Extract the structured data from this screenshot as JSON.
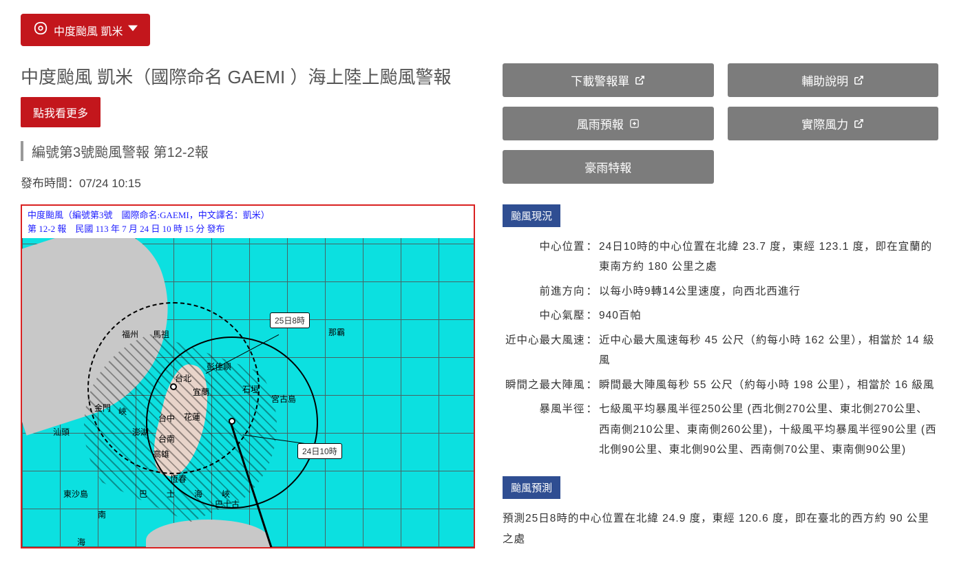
{
  "selector": {
    "label": "中度颱風 凱米"
  },
  "header": {
    "title": "中度颱風 凱米（國際命名 GAEMI ）海上陸上颱風警報",
    "more_btn": "點我看更多",
    "bulletin_no": "編號第3號颱風警報 第12-2報",
    "issued": "發布時間：07/24 10:15"
  },
  "map": {
    "line1": "中度颱風（編號第3號　國際命名:GAEMI，中文譯名：凱米）",
    "line2": "第 12-2 報　民國 113 年 7 月 24 日 10 時 15 分 發布",
    "callout_now": "24日10時",
    "callout_fut": "25日8時",
    "labels": {
      "fuzhou": "福州",
      "mazu": "馬祖",
      "jinmen": "金門",
      "shantou": "汕頭",
      "penghu": "澎湖",
      "taipei": "台北",
      "hualien": "花蓮",
      "taichung": "台中",
      "tainan": "台南",
      "kaohsiung": "高雄",
      "hengchun": "恆春",
      "yilan": "宜蘭",
      "nanhai": "南",
      "hai": "海",
      "xia": "峽",
      "bashi": "巴　士　海　峽",
      "dongsha": "東沙島",
      "naha": "那霸",
      "miyako": "宮古島",
      "ishigaki": "石垣",
      "pengjiayu": "彭佳嶼",
      "bashigu": "巴士古"
    }
  },
  "buttons": {
    "download": "下載警報單",
    "help": "輔助說明",
    "windrain": "風雨預報",
    "actual": "實際風力",
    "heavyrain": "豪雨特報"
  },
  "status": {
    "section_title": "颱風現況",
    "rows": [
      {
        "k": "中心位置",
        "v": "24日10時的中心位置在北緯 23.7 度，東經 123.1 度，即在宜蘭的東南方約 180 公里之處"
      },
      {
        "k": "前進方向",
        "v": "以每小時9轉14公里速度，向西北西進行"
      },
      {
        "k": "中心氣壓",
        "v": "940百帕"
      },
      {
        "k": "近中心最大風速",
        "v": "近中心最大風速每秒 45 公尺（約每小時 162 公里），相當於 14 級風"
      },
      {
        "k": "瞬間之最大陣風",
        "v": "瞬間最大陣風每秒 55 公尺（約每小時 198 公里），相當於 16 級風"
      },
      {
        "k": "暴風半徑",
        "v": "七級風平均暴風半徑250公里 (西北側270公里、東北側270公里、西南側210公里、東南側260公里)，十級風平均暴風半徑90公里 (西北側90公里、東北側90公里、西南側70公里、東南側90公里)"
      }
    ]
  },
  "forecast": {
    "section_title": "颱風預測",
    "text": "預測25日8時的中心位置在北緯 24.9 度，東經 120.6 度，即在臺北的西方約 90 公里之處"
  }
}
